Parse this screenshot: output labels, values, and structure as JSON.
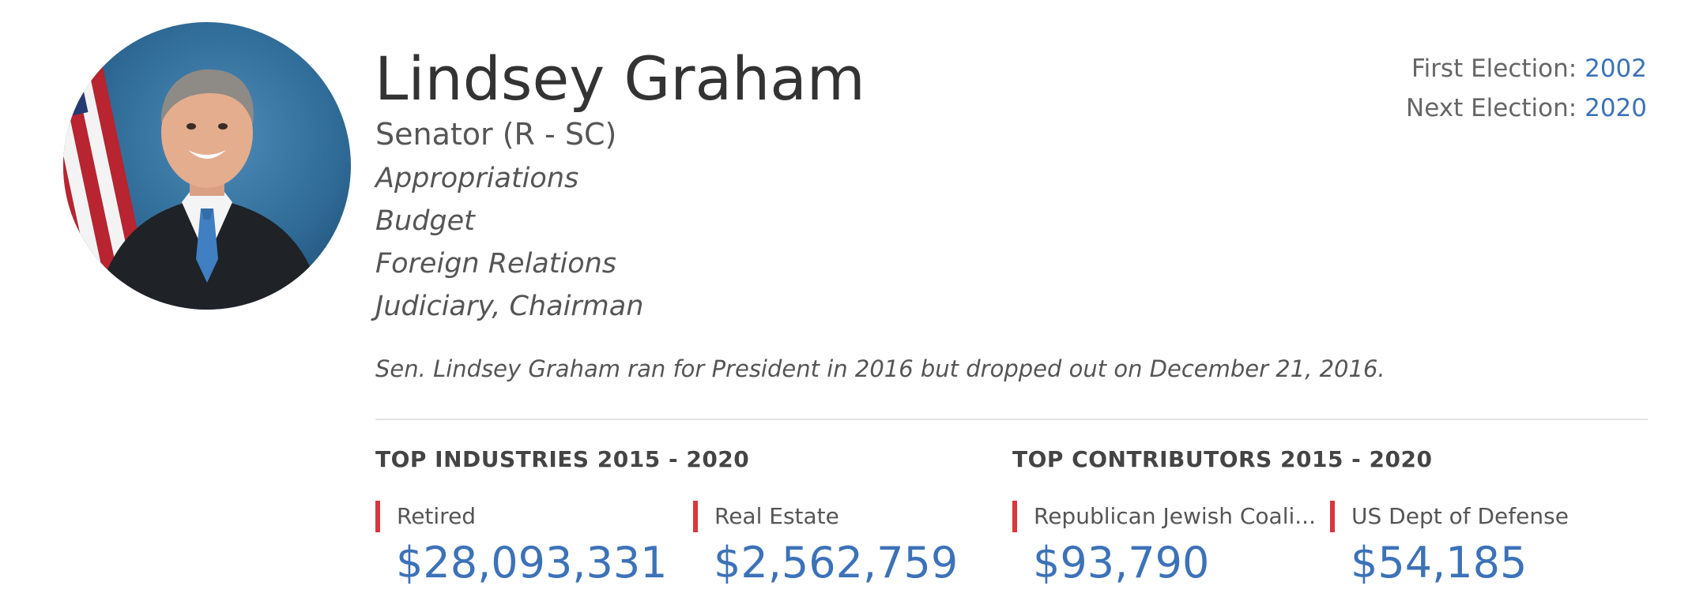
{
  "profile": {
    "name": "Lindsey Graham",
    "role": "Senator (R - SC)",
    "committees": [
      "Appropriations",
      "Budget",
      "Foreign Relations",
      "Judiciary, Chairman"
    ],
    "note": "Sen. Lindsey Graham ran for President in 2016 but dropped out on December 21, 2016."
  },
  "elections": {
    "first_label": "First Election: ",
    "first_value": "2002",
    "next_label": "Next Election: ",
    "next_value": "2020"
  },
  "industries": {
    "title": "TOP INDUSTRIES 2015 - 2020",
    "items": [
      {
        "label": "Retired",
        "amount": "$28,093,331"
      },
      {
        "label": "Real Estate",
        "amount": "$2,562,759"
      }
    ]
  },
  "contributors": {
    "title": "TOP CONTRIBUTORS 2015 - 2020",
    "items": [
      {
        "label": "Republican Jewish Coali...",
        "amount": "$93,790"
      },
      {
        "label": "US Dept of Defense",
        "amount": "$54,185"
      }
    ]
  },
  "colors": {
    "accent_blue": "#3c72b8",
    "accent_red": "#d9363e",
    "text_dark": "#333333",
    "text_muted": "#555555"
  },
  "icons": {
    "avatar": "senator-portrait"
  }
}
